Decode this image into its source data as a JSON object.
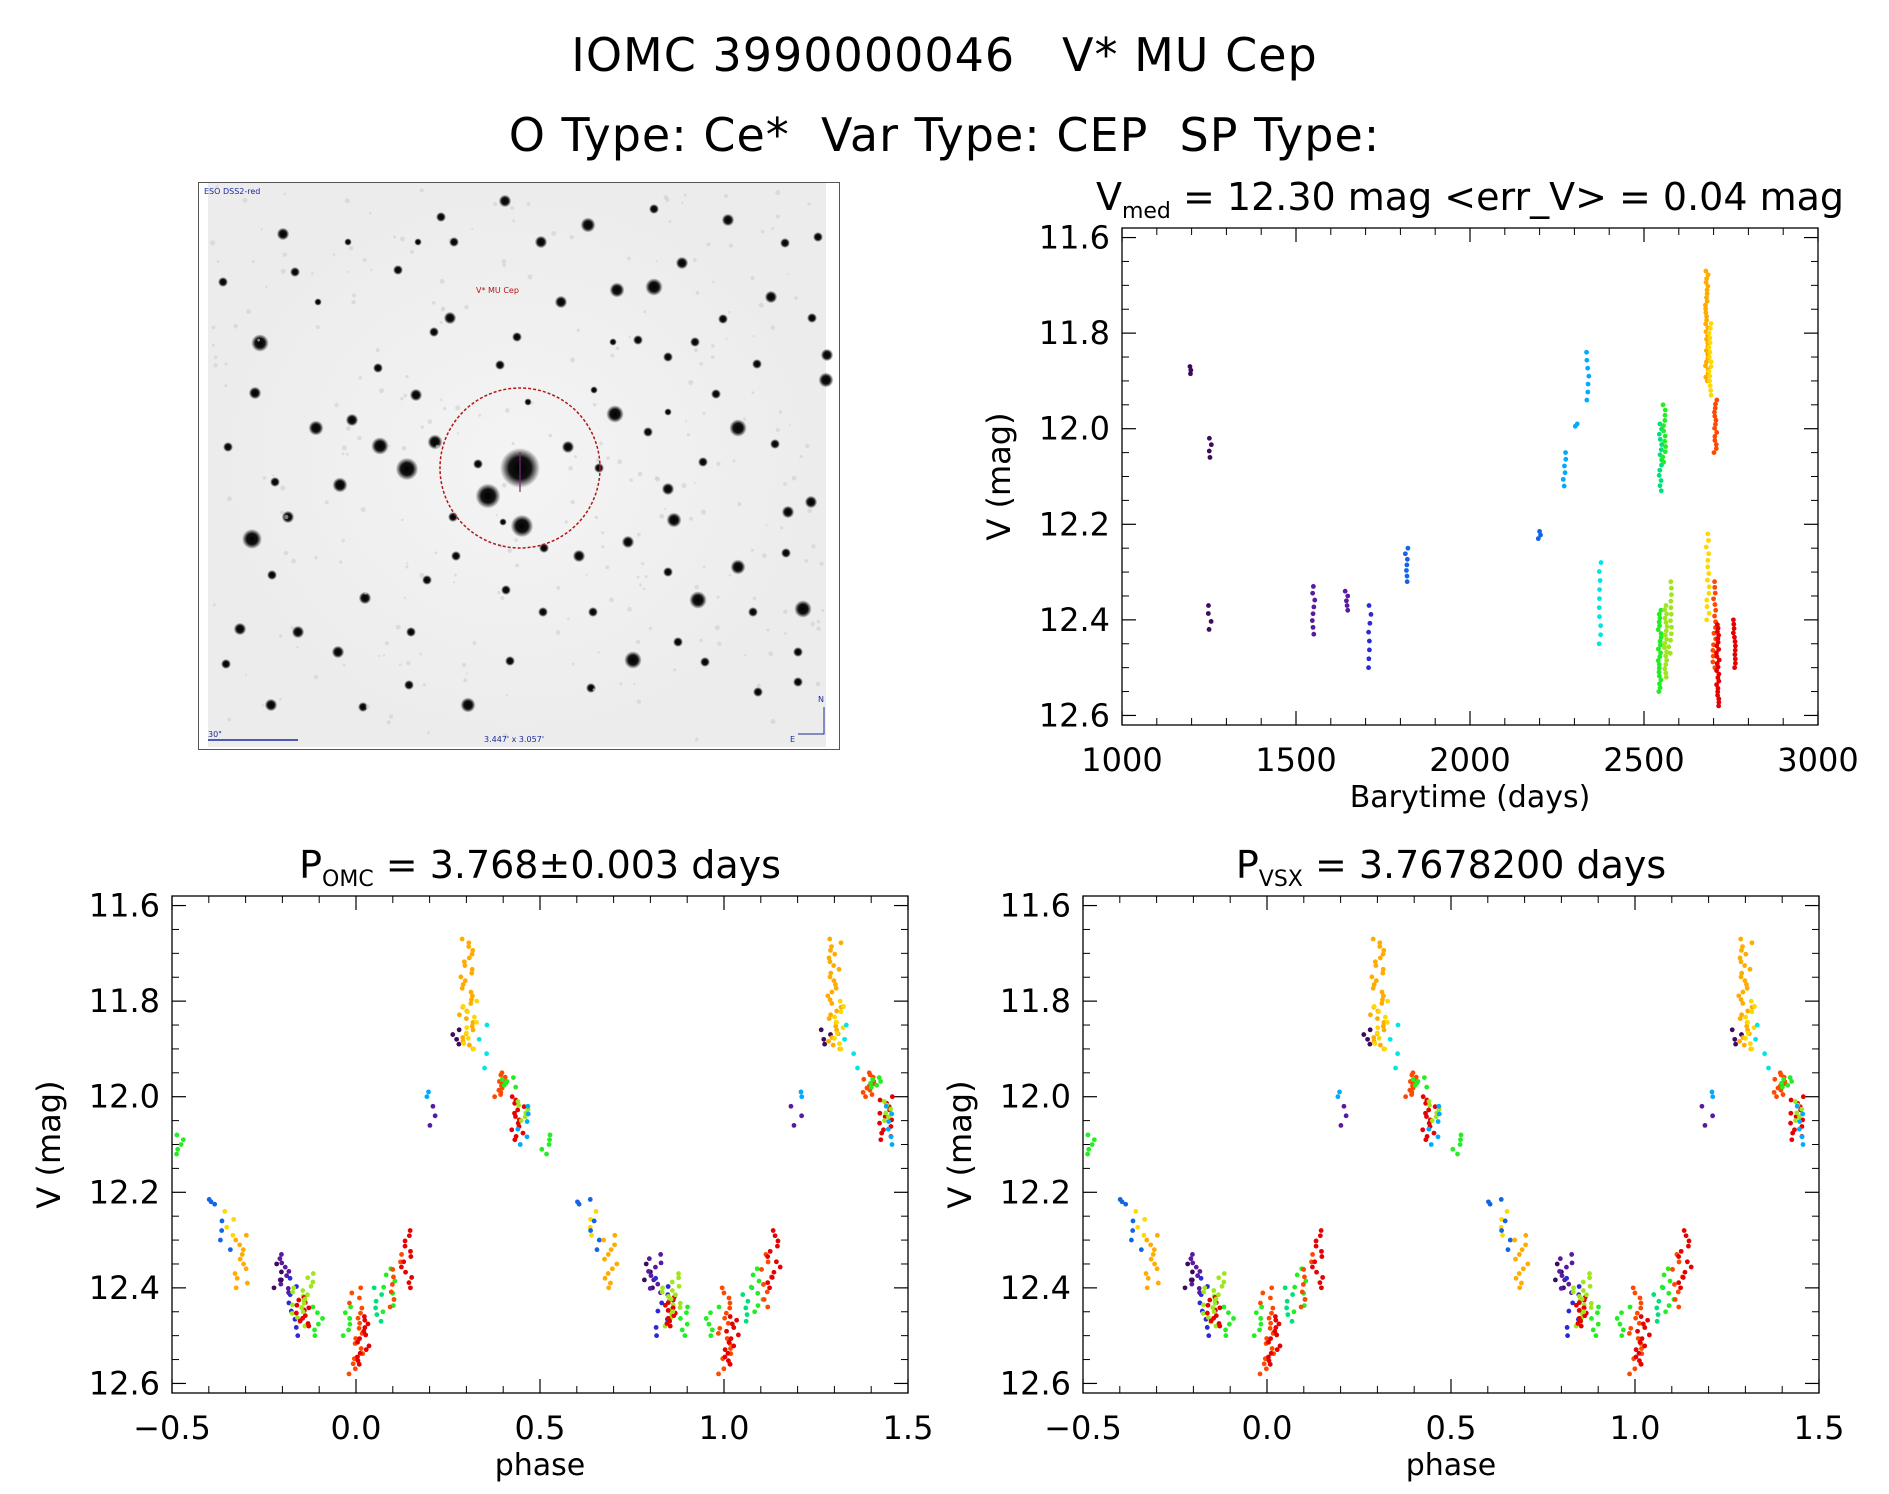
{
  "header": {
    "line1": "IOMC 3990000046   V* MU Cep",
    "line2": "O Type: Ce*  Var Type: CEP  SP Type:"
  },
  "finder_chart": {
    "survey_label": "ESO DSS2-red",
    "target_label": "V* MU Cep",
    "scale_label": "30\"",
    "fov_label": "3.447' x 3.057'",
    "north_label": "N",
    "east_label": "E"
  },
  "colors": {
    "palette": [
      "#3d0a5c",
      "#5a1aa0",
      "#2a2ad8",
      "#1464e6",
      "#00aaff",
      "#00e6e6",
      "#00e07a",
      "#22ee22",
      "#9ee61e",
      "#ffd800",
      "#ffab00",
      "#ff7d00",
      "#ff4800",
      "#e60000"
    ],
    "finder_circle": "#b01818"
  },
  "chart_data": [
    {
      "id": "lightcurve",
      "type": "scatter",
      "title": "V",
      "title_sub": "med",
      "title_rest": " = 12.30 mag <err_V> = 0.04 mag",
      "xlabel": "Barytime (days)",
      "ylabel": "V (mag)",
      "xlim": [
        1000,
        3000
      ],
      "ylim": [
        12.62,
        11.58
      ],
      "xticks": [
        1000,
        1500,
        2000,
        2500,
        3000
      ],
      "xtick_labels": [
        "1000",
        "1500",
        "2000",
        "2500",
        "3000"
      ],
      "yticks": [
        11.6,
        11.8,
        12.0,
        12.2,
        12.4,
        12.6
      ],
      "ytick_labels": [
        "11.6",
        "11.8",
        "12.0",
        "12.2",
        "12.4",
        "12.6"
      ],
      "groups": [
        {
          "x": 1198,
          "c": 0,
          "ymin": 11.87,
          "ymax": 11.885,
          "n": 3
        },
        {
          "x": 1255,
          "c": 0,
          "ymin": 12.02,
          "ymax": 12.06,
          "n": 4
        },
        {
          "x": 1252,
          "c": 0,
          "ymin": 12.37,
          "ymax": 12.42,
          "n": 4
        },
        {
          "x": 1550,
          "c": 1,
          "ymin": 12.33,
          "ymax": 12.43,
          "n": 8
        },
        {
          "x": 1645,
          "c": 1,
          "ymin": 12.34,
          "ymax": 12.38,
          "n": 5
        },
        {
          "x": 1712,
          "c": 2,
          "ymin": 12.37,
          "ymax": 12.5,
          "n": 8
        },
        {
          "x": 1818,
          "c": 3,
          "ymin": 12.25,
          "ymax": 12.32,
          "n": 7
        },
        {
          "x": 2200,
          "c": 3,
          "ymin": 12.215,
          "ymax": 12.23,
          "n": 3
        },
        {
          "x": 2272,
          "c": 4,
          "ymin": 12.05,
          "ymax": 12.12,
          "n": 6
        },
        {
          "x": 2304,
          "c": 4,
          "ymin": 11.99,
          "ymax": 11.995,
          "n": 2
        },
        {
          "x": 2338,
          "c": 4,
          "ymin": 11.84,
          "ymax": 11.94,
          "n": 7
        },
        {
          "x": 2375,
          "c": 5,
          "ymin": 12.28,
          "ymax": 12.45,
          "n": 10
        },
        {
          "x": 2547,
          "c": 6,
          "ymin": 11.99,
          "ymax": 12.13,
          "n": 14
        },
        {
          "x": 2558,
          "c": 7,
          "ymin": 11.95,
          "ymax": 12.07,
          "n": 12
        },
        {
          "x": 2545,
          "c": 7,
          "ymin": 12.38,
          "ymax": 12.55,
          "n": 22
        },
        {
          "x": 2563,
          "c": 8,
          "ymin": 12.37,
          "ymax": 12.52,
          "n": 18
        },
        {
          "x": 2575,
          "c": 8,
          "ymin": 12.32,
          "ymax": 12.47,
          "n": 12
        },
        {
          "x": 2680,
          "c": 10,
          "ymin": 11.67,
          "ymax": 11.9,
          "n": 30
        },
        {
          "x": 2690,
          "c": 9,
          "ymin": 11.78,
          "ymax": 11.93,
          "n": 16
        },
        {
          "x": 2683,
          "c": 9,
          "ymin": 12.22,
          "ymax": 12.4,
          "n": 14
        },
        {
          "x": 2705,
          "c": 12,
          "ymin": 11.94,
          "ymax": 12.05,
          "n": 14
        },
        {
          "x": 2702,
          "c": 12,
          "ymin": 12.32,
          "ymax": 12.5,
          "n": 16
        },
        {
          "x": 2712,
          "c": 13,
          "ymin": 12.41,
          "ymax": 12.58,
          "n": 24
        },
        {
          "x": 2760,
          "c": 13,
          "ymin": 12.4,
          "ymax": 12.5,
          "n": 12
        }
      ]
    },
    {
      "id": "phase_omc",
      "type": "scatter",
      "title": "P",
      "title_sub": "OMC",
      "title_rest": " = 3.768±0.003 days",
      "xlabel": "phase",
      "ylabel": "V (mag)",
      "xlim": [
        -0.5,
        1.5
      ],
      "ylim": [
        12.62,
        11.58
      ],
      "xticks": [
        -0.5,
        0.0,
        0.5,
        1.0,
        1.5
      ],
      "xtick_labels": [
        "−0.5",
        "0.0",
        "0.5",
        "1.0",
        "1.5"
      ],
      "yticks": [
        11.6,
        11.8,
        12.0,
        12.2,
        12.4,
        12.6
      ],
      "ytick_labels": [
        "11.6",
        "11.8",
        "12.0",
        "12.2",
        "12.4",
        "12.6"
      ],
      "groups": [
        {
          "x": 0.0,
          "c": 12,
          "ymin": 12.4,
          "ymax": 12.58,
          "n": 18
        },
        {
          "x": 0.02,
          "c": 13,
          "ymin": 12.46,
          "ymax": 12.56,
          "n": 14
        },
        {
          "x": -0.03,
          "c": 7,
          "ymin": 12.44,
          "ymax": 12.5,
          "n": 6
        },
        {
          "x": -0.1,
          "c": 7,
          "ymin": 12.44,
          "ymax": 12.5,
          "n": 6
        },
        {
          "x": 0.09,
          "c": 7,
          "ymin": 12.36,
          "ymax": 12.45,
          "n": 8
        },
        {
          "x": 0.06,
          "c": 6,
          "ymin": 12.4,
          "ymax": 12.47,
          "n": 6
        },
        {
          "x": 0.11,
          "c": 12,
          "ymin": 12.33,
          "ymax": 12.44,
          "n": 8
        },
        {
          "x": 0.135,
          "c": 13,
          "ymin": 12.28,
          "ymax": 12.4,
          "n": 12
        },
        {
          "x": -0.19,
          "c": 1,
          "ymin": 12.33,
          "ymax": 12.41,
          "n": 10
        },
        {
          "x": -0.17,
          "c": 2,
          "ymin": 12.38,
          "ymax": 12.5,
          "n": 8
        },
        {
          "x": -0.155,
          "c": 8,
          "ymin": 12.4,
          "ymax": 12.48,
          "n": 10
        },
        {
          "x": -0.145,
          "c": 13,
          "ymin": 12.42,
          "ymax": 12.48,
          "n": 12
        },
        {
          "x": -0.13,
          "c": 8,
          "ymin": 12.37,
          "ymax": 12.45,
          "n": 10
        },
        {
          "x": -0.21,
          "c": 0,
          "ymin": 12.35,
          "ymax": 12.4,
          "n": 4
        },
        {
          "x": -0.31,
          "c": 10,
          "ymin": 12.29,
          "ymax": 12.4,
          "n": 12
        },
        {
          "x": -0.35,
          "c": 9,
          "ymin": 12.24,
          "ymax": 12.29,
          "n": 4
        },
        {
          "x": -0.35,
          "c": 3,
          "ymin": 12.26,
          "ymax": 12.32,
          "n": 4
        },
        {
          "x": -0.39,
          "c": 3,
          "ymin": 12.215,
          "ymax": 12.225,
          "n": 3
        },
        {
          "x": -0.48,
          "c": 7,
          "ymin": 12.08,
          "ymax": 12.12,
          "n": 5
        },
        {
          "x": 0.2,
          "c": 1,
          "ymin": 12.02,
          "ymax": 12.06,
          "n": 3
        },
        {
          "x": 0.21,
          "c": 4,
          "ymin": 11.99,
          "ymax": 12.0,
          "n": 2
        },
        {
          "x": 0.28,
          "c": 0,
          "ymin": 11.86,
          "ymax": 11.89,
          "n": 4
        },
        {
          "x": 0.3,
          "c": 10,
          "ymin": 11.67,
          "ymax": 11.9,
          "n": 30
        },
        {
          "x": 0.31,
          "c": 9,
          "ymin": 11.8,
          "ymax": 11.9,
          "n": 10
        },
        {
          "x": 0.345,
          "c": 5,
          "ymin": 11.85,
          "ymax": 11.94,
          "n": 4
        },
        {
          "x": 0.39,
          "c": 12,
          "ymin": 11.95,
          "ymax": 12.0,
          "n": 12
        },
        {
          "x": 0.415,
          "c": 7,
          "ymin": 11.96,
          "ymax": 11.98,
          "n": 6
        },
        {
          "x": 0.44,
          "c": 13,
          "ymin": 12.0,
          "ymax": 12.09,
          "n": 14
        },
        {
          "x": 0.45,
          "c": 8,
          "ymin": 12.01,
          "ymax": 12.05,
          "n": 6
        },
        {
          "x": 0.455,
          "c": 4,
          "ymin": 12.02,
          "ymax": 12.1,
          "n": 6
        },
        {
          "x": 0.52,
          "c": 7,
          "ymin": 12.08,
          "ymax": 12.12,
          "n": 5
        },
        {
          "x": 0.62,
          "c": 3,
          "ymin": 12.215,
          "ymax": 12.225,
          "n": 3
        },
        {
          "x": 0.65,
          "c": 9,
          "ymin": 12.24,
          "ymax": 12.29,
          "n": 4
        },
        {
          "x": 0.65,
          "c": 3,
          "ymin": 12.26,
          "ymax": 12.32,
          "n": 4
        },
        {
          "x": 0.69,
          "c": 10,
          "ymin": 12.29,
          "ymax": 12.4,
          "n": 12
        },
        {
          "x": 0.79,
          "c": 0,
          "ymin": 12.35,
          "ymax": 12.4,
          "n": 4
        },
        {
          "x": 0.81,
          "c": 1,
          "ymin": 12.33,
          "ymax": 12.41,
          "n": 10
        },
        {
          "x": 0.83,
          "c": 2,
          "ymin": 12.38,
          "ymax": 12.5,
          "n": 8
        },
        {
          "x": 0.845,
          "c": 8,
          "ymin": 12.4,
          "ymax": 12.48,
          "n": 10
        },
        {
          "x": 0.855,
          "c": 13,
          "ymin": 12.42,
          "ymax": 12.48,
          "n": 12
        },
        {
          "x": 0.87,
          "c": 8,
          "ymin": 12.37,
          "ymax": 12.45,
          "n": 10
        },
        {
          "x": 0.9,
          "c": 7,
          "ymin": 12.44,
          "ymax": 12.5,
          "n": 6
        },
        {
          "x": 0.97,
          "c": 7,
          "ymin": 12.44,
          "ymax": 12.5,
          "n": 6
        },
        {
          "x": 1.0,
          "c": 12,
          "ymin": 12.4,
          "ymax": 12.58,
          "n": 18
        },
        {
          "x": 1.02,
          "c": 13,
          "ymin": 12.46,
          "ymax": 12.56,
          "n": 14
        },
        {
          "x": 1.06,
          "c": 6,
          "ymin": 12.4,
          "ymax": 12.47,
          "n": 6
        },
        {
          "x": 1.09,
          "c": 7,
          "ymin": 12.36,
          "ymax": 12.45,
          "n": 8
        },
        {
          "x": 1.11,
          "c": 12,
          "ymin": 12.33,
          "ymax": 12.44,
          "n": 8
        },
        {
          "x": 1.135,
          "c": 13,
          "ymin": 12.28,
          "ymax": 12.4,
          "n": 12
        },
        {
          "x": 1.2,
          "c": 1,
          "ymin": 12.02,
          "ymax": 12.06,
          "n": 3
        },
        {
          "x": 1.21,
          "c": 4,
          "ymin": 11.99,
          "ymax": 12.0,
          "n": 2
        },
        {
          "x": 1.28,
          "c": 0,
          "ymin": 11.86,
          "ymax": 11.89,
          "n": 4
        },
        {
          "x": 1.3,
          "c": 10,
          "ymin": 11.67,
          "ymax": 11.9,
          "n": 30
        },
        {
          "x": 1.31,
          "c": 9,
          "ymin": 11.8,
          "ymax": 11.9,
          "n": 10
        },
        {
          "x": 1.345,
          "c": 5,
          "ymin": 11.85,
          "ymax": 11.94,
          "n": 4
        },
        {
          "x": 1.39,
          "c": 12,
          "ymin": 11.95,
          "ymax": 12.0,
          "n": 12
        },
        {
          "x": 1.415,
          "c": 7,
          "ymin": 11.96,
          "ymax": 11.98,
          "n": 6
        },
        {
          "x": 1.44,
          "c": 13,
          "ymin": 12.0,
          "ymax": 12.09,
          "n": 14
        },
        {
          "x": 1.45,
          "c": 8,
          "ymin": 12.01,
          "ymax": 12.05,
          "n": 6
        },
        {
          "x": 1.455,
          "c": 4,
          "ymin": 12.02,
          "ymax": 12.1,
          "n": 6
        }
      ]
    },
    {
      "id": "phase_vsx",
      "type": "scatter",
      "title": "P",
      "title_sub": "VSX",
      "title_rest": " = 3.7678200 days",
      "xlabel": "phase",
      "ylabel": "V (mag)",
      "xlim": [
        -0.5,
        1.5
      ],
      "ylim": [
        12.62,
        11.58
      ],
      "xticks": [
        -0.5,
        0.0,
        0.5,
        1.0,
        1.5
      ],
      "xtick_labels": [
        "−0.5",
        "0.0",
        "0.5",
        "1.0",
        "1.5"
      ],
      "yticks": [
        11.6,
        11.8,
        12.0,
        12.2,
        12.4,
        12.6
      ],
      "ytick_labels": [
        "11.6",
        "11.8",
        "12.0",
        "12.2",
        "12.4",
        "12.6"
      ],
      "same_groups_as": "phase_omc"
    }
  ]
}
